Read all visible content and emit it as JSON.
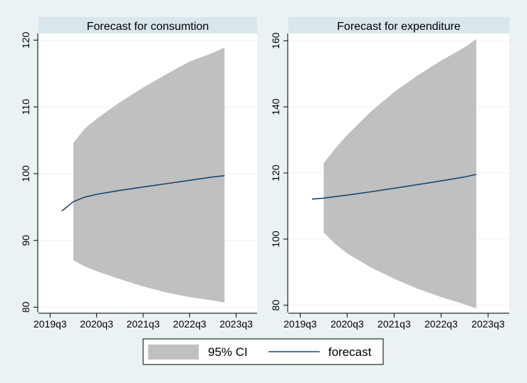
{
  "chart_data": [
    {
      "type": "area",
      "title": "Forecast for consumtion",
      "x_ticks": [
        "2019q3",
        "2020q3",
        "2021q3",
        "2022q3",
        "2023q3"
      ],
      "y_ticks": [
        "80",
        "90",
        "100",
        "110",
        "120"
      ],
      "xlim": [
        -0.25,
        4.45
      ],
      "ylim": [
        79.2,
        121
      ],
      "x": [
        0.5,
        0.75,
        1.0,
        1.5,
        2.0,
        2.5,
        3.0,
        3.5,
        3.75
      ],
      "lower": [
        87.0,
        86.1,
        85.4,
        84.2,
        83.1,
        82.2,
        81.5,
        81.0,
        80.7
      ],
      "upper": [
        104.6,
        106.8,
        108.2,
        110.7,
        112.9,
        114.9,
        116.8,
        118.1,
        118.9
      ],
      "forecast": {
        "x": [
          0.25,
          0.5,
          0.75,
          1.0,
          1.25,
          1.5,
          2.0,
          2.5,
          3.0,
          3.5,
          3.75
        ],
        "y": [
          94.4,
          95.8,
          96.5,
          96.9,
          97.2,
          97.5,
          98.0,
          98.5,
          99.0,
          99.5,
          99.7
        ]
      }
    },
    {
      "type": "area",
      "title": "Forecast for expenditure",
      "x_ticks": [
        "2019q3",
        "2020q3",
        "2021q3",
        "2022q3",
        "2023q3"
      ],
      "y_ticks": [
        "80",
        "100",
        "120",
        "140",
        "160"
      ],
      "xlim": [
        -0.25,
        4.45
      ],
      "ylim": [
        77.8,
        162.2
      ],
      "x": [
        0.5,
        0.75,
        1.0,
        1.5,
        2.0,
        2.5,
        3.0,
        3.5,
        3.75
      ],
      "lower": [
        102,
        98.5,
        95.7,
        91.5,
        88.0,
        85.0,
        82.5,
        80.3,
        79.0
      ],
      "upper": [
        123,
        127.5,
        131.5,
        138.5,
        144.5,
        149.5,
        154.0,
        158.0,
        160.5
      ],
      "forecast": {
        "x": [
          0.25,
          0.5,
          1.0,
          1.5,
          2.0,
          2.5,
          3.0,
          3.5,
          3.75
        ],
        "y": [
          112.1,
          112.4,
          113.3,
          114.3,
          115.4,
          116.5,
          117.6,
          118.8,
          119.6
        ]
      }
    }
  ],
  "legend": {
    "ci_label": "95% CI",
    "forecast_label": "forecast"
  },
  "colors": {
    "ci_fill": "#c0c0c0",
    "forecast_line": "#1a476f",
    "plot_bg": "#ffffff",
    "outer_bg": "#eaf2f3",
    "title_bar": "#d9e6eb",
    "grid": "#eaf2f3"
  }
}
